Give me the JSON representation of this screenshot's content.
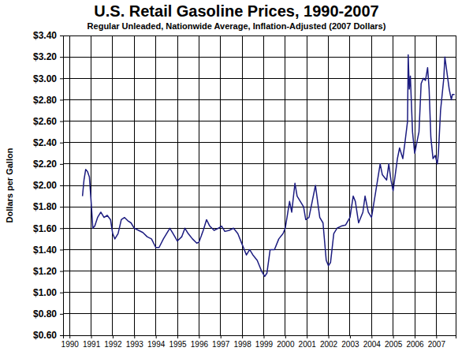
{
  "chart_data": {
    "type": "line",
    "title": "U.S. Retail Gasoline Prices, 1990-2007",
    "subtitle": "Regular Unleaded, Nationwide Average, Inflation-Adjusted (2007 Dollars)",
    "y_label": "Dollars per Gallon",
    "color": "#1c1c80",
    "grid": true,
    "xlim": [
      1989.7,
      2007.9
    ],
    "xticks": [
      1990,
      1991,
      1992,
      1993,
      1994,
      1995,
      1996,
      1997,
      1998,
      1999,
      2000,
      2001,
      2002,
      2003,
      2004,
      2005,
      2006,
      2007
    ],
    "ylim": [
      0.6,
      3.4
    ],
    "yticks": [
      {
        "value": 0.6,
        "label": "$0.60"
      },
      {
        "value": 0.8,
        "label": "$0.80"
      },
      {
        "value": 1.0,
        "label": "$1.00"
      },
      {
        "value": 1.2,
        "label": "$1.20"
      },
      {
        "value": 1.4,
        "label": "$1.40"
      },
      {
        "value": 1.6,
        "label": "$1.60"
      },
      {
        "value": 1.8,
        "label": "$1.80"
      },
      {
        "value": 2.0,
        "label": "$2.00"
      },
      {
        "value": 2.2,
        "label": "$2.20"
      },
      {
        "value": 2.4,
        "label": "$2.40"
      },
      {
        "value": 2.6,
        "label": "$2.60"
      },
      {
        "value": 2.8,
        "label": "$2.80"
      },
      {
        "value": 3.0,
        "label": "$3.00"
      },
      {
        "value": 3.2,
        "label": "$3.20"
      },
      {
        "value": 3.4,
        "label": "$3.40"
      }
    ],
    "x": [
      1990.6,
      1990.67,
      1990.75,
      1990.83,
      1990.92,
      1991.0,
      1991.08,
      1991.17,
      1991.3,
      1991.45,
      1991.6,
      1991.75,
      1991.9,
      1992.0,
      1992.1,
      1992.25,
      1992.4,
      1992.55,
      1992.7,
      1992.85,
      1993.0,
      1993.2,
      1993.4,
      1993.6,
      1993.8,
      1994.0,
      1994.15,
      1994.35,
      1994.5,
      1994.65,
      1994.8,
      1995.0,
      1995.2,
      1995.35,
      1995.5,
      1995.7,
      1995.9,
      1996.0,
      1996.2,
      1996.35,
      1996.5,
      1996.7,
      1996.9,
      1997.05,
      1997.2,
      1997.4,
      1997.6,
      1997.8,
      1998.0,
      1998.2,
      1998.35,
      1998.5,
      1998.7,
      1998.9,
      1999.05,
      1999.15,
      1999.3,
      1999.5,
      1999.7,
      1999.9,
      2000.0,
      2000.2,
      2000.3,
      2000.45,
      2000.55,
      2000.7,
      2000.85,
      2000.95,
      2001.1,
      2001.25,
      2001.4,
      2001.5,
      2001.6,
      2001.75,
      2001.9,
      2002.0,
      2002.1,
      2002.25,
      2002.4,
      2002.6,
      2002.8,
      2003.0,
      2003.15,
      2003.25,
      2003.4,
      2003.6,
      2003.7,
      2003.85,
      2004.0,
      2004.2,
      2004.4,
      2004.5,
      2004.7,
      2004.8,
      2004.9,
      2005.0,
      2005.2,
      2005.3,
      2005.45,
      2005.55,
      2005.67,
      2005.7,
      2005.75,
      2005.8,
      2005.9,
      2006.0,
      2006.1,
      2006.2,
      2006.3,
      2006.4,
      2006.5,
      2006.6,
      2006.67,
      2006.75,
      2006.85,
      2006.95,
      2007.05,
      2007.1,
      2007.2,
      2007.35,
      2007.4,
      2007.5,
      2007.6,
      2007.7,
      2007.75,
      2007.85
    ],
    "values": [
      1.9,
      2.05,
      2.15,
      2.13,
      2.08,
      1.85,
      1.6,
      1.62,
      1.7,
      1.75,
      1.7,
      1.72,
      1.68,
      1.55,
      1.5,
      1.55,
      1.68,
      1.7,
      1.67,
      1.65,
      1.6,
      1.58,
      1.56,
      1.52,
      1.5,
      1.42,
      1.42,
      1.5,
      1.55,
      1.6,
      1.55,
      1.48,
      1.52,
      1.6,
      1.55,
      1.5,
      1.46,
      1.47,
      1.58,
      1.68,
      1.62,
      1.58,
      1.6,
      1.62,
      1.57,
      1.58,
      1.6,
      1.55,
      1.45,
      1.35,
      1.4,
      1.35,
      1.3,
      1.2,
      1.15,
      1.18,
      1.4,
      1.4,
      1.5,
      1.55,
      1.6,
      1.85,
      1.75,
      2.02,
      1.9,
      1.85,
      1.8,
      1.68,
      1.7,
      1.85,
      2.0,
      1.85,
      1.7,
      1.65,
      1.3,
      1.25,
      1.28,
      1.55,
      1.6,
      1.62,
      1.63,
      1.7,
      1.9,
      1.85,
      1.65,
      1.75,
      1.9,
      1.75,
      1.7,
      1.95,
      2.2,
      2.1,
      2.05,
      2.2,
      2.05,
      1.95,
      2.25,
      2.35,
      2.25,
      2.4,
      2.6,
      3.22,
      2.9,
      3.02,
      2.5,
      2.3,
      2.4,
      2.5,
      2.95,
      3.0,
      2.98,
      3.1,
      2.9,
      2.45,
      2.25,
      2.28,
      2.2,
      2.3,
      2.7,
      3.0,
      3.2,
      3.05,
      2.9,
      2.8,
      2.85,
      2.85
    ]
  }
}
